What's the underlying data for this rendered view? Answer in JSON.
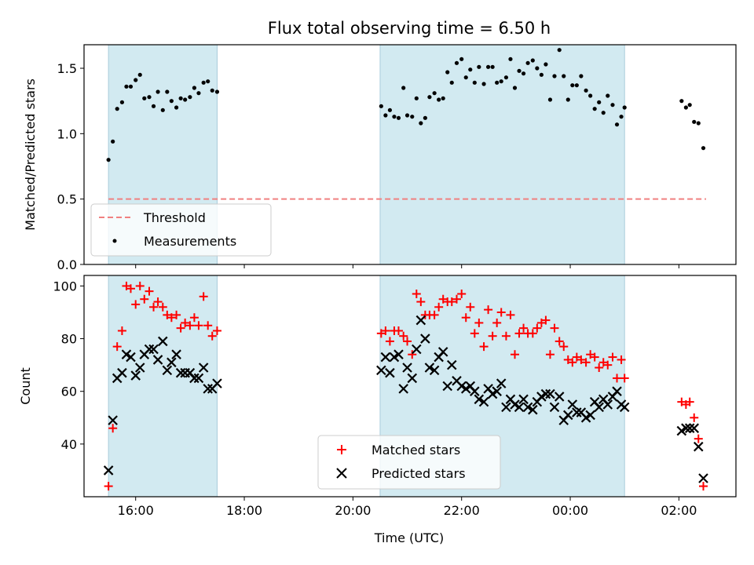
{
  "chart_data": {
    "title": "Flux total observing time = 6.50 h",
    "xlabel": "Time (UTC)",
    "x_unit": "hours since 00:00 of first day",
    "xlim": [
      15.05,
      27.05
    ],
    "xticks": [
      {
        "value": 16,
        "label": "16:00"
      },
      {
        "value": 18,
        "label": "18:00"
      },
      {
        "value": 20,
        "label": "20:00"
      },
      {
        "value": 22,
        "label": "22:00"
      },
      {
        "value": 24,
        "label": "00:00"
      },
      {
        "value": 26,
        "label": "02:00"
      }
    ],
    "shaded_intervals": [
      [
        15.5,
        17.5
      ],
      [
        20.5,
        25.0
      ]
    ],
    "panels": [
      {
        "type": "scatter",
        "ylabel": "Matched/Predicted stars",
        "ylim": [
          0.0,
          1.68
        ],
        "yticks": [
          {
            "value": 0.0,
            "label": "0.0"
          },
          {
            "value": 0.5,
            "label": "0.5"
          },
          {
            "value": 1.0,
            "label": "1.0"
          },
          {
            "value": 1.5,
            "label": "1.5"
          }
        ],
        "threshold": {
          "name": "Threshold",
          "value": 0.5,
          "x_range": [
            15.5,
            26.5
          ],
          "color": "#f08080"
        },
        "legend_location": "lower-left",
        "series": [
          {
            "name": "Measurements",
            "marker": "dot",
            "color": "#000000",
            "x": [
              15.5,
              15.58,
              15.66,
              15.75,
              15.83,
              15.91,
              16.0,
              16.08,
              16.16,
              16.25,
              16.33,
              16.41,
              16.5,
              16.58,
              16.66,
              16.75,
              16.83,
              16.91,
              17.0,
              17.08,
              17.16,
              17.25,
              17.33,
              17.41,
              17.5,
              20.52,
              20.6,
              20.68,
              20.76,
              20.84,
              20.93,
              21.0,
              21.09,
              21.17,
              21.25,
              21.33,
              21.41,
              21.5,
              21.58,
              21.66,
              21.74,
              21.82,
              21.91,
              22.0,
              22.08,
              22.16,
              22.24,
              22.32,
              22.41,
              22.49,
              22.57,
              22.65,
              22.73,
              22.82,
              22.9,
              22.98,
              23.06,
              23.14,
              23.22,
              23.31,
              23.39,
              23.47,
              23.55,
              23.63,
              23.71,
              23.8,
              23.88,
              23.96,
              24.04,
              24.12,
              24.2,
              24.29,
              24.37,
              24.45,
              24.53,
              24.61,
              24.69,
              24.78,
              24.86,
              24.94,
              25.0,
              26.05,
              26.13,
              26.2,
              26.28,
              26.36,
              26.45
            ],
            "y": [
              0.8,
              0.94,
              1.19,
              1.24,
              1.36,
              1.36,
              1.41,
              1.45,
              1.27,
              1.28,
              1.21,
              1.32,
              1.18,
              1.32,
              1.25,
              1.2,
              1.27,
              1.26,
              1.28,
              1.35,
              1.31,
              1.39,
              1.4,
              1.33,
              1.32,
              1.21,
              1.14,
              1.18,
              1.13,
              1.12,
              1.35,
              1.14,
              1.13,
              1.27,
              1.08,
              1.12,
              1.28,
              1.31,
              1.26,
              1.27,
              1.47,
              1.39,
              1.54,
              1.57,
              1.43,
              1.49,
              1.39,
              1.51,
              1.38,
              1.51,
              1.51,
              1.39,
              1.4,
              1.43,
              1.57,
              1.35,
              1.48,
              1.46,
              1.54,
              1.56,
              1.5,
              1.45,
              1.53,
              1.26,
              1.44,
              1.64,
              1.44,
              1.26,
              1.37,
              1.37,
              1.44,
              1.33,
              1.29,
              1.19,
              1.24,
              1.16,
              1.29,
              1.22,
              1.07,
              1.13,
              1.2,
              1.25,
              1.2,
              1.22,
              1.09,
              1.08,
              0.89
            ]
          }
        ]
      },
      {
        "type": "scatter",
        "ylabel": "Count",
        "ylim": [
          20,
          104
        ],
        "yticks": [
          {
            "value": 40,
            "label": "40"
          },
          {
            "value": 60,
            "label": "60"
          },
          {
            "value": 80,
            "label": "80"
          },
          {
            "value": 100,
            "label": "100"
          }
        ],
        "legend_location": "lower-center",
        "series": [
          {
            "name": "Matched stars",
            "marker": "plus",
            "color": "#ff0000",
            "x": [
              15.5,
              15.58,
              15.66,
              15.75,
              15.83,
              15.91,
              16.0,
              16.08,
              16.16,
              16.25,
              16.33,
              16.41,
              16.5,
              16.58,
              16.66,
              16.75,
              16.83,
              16.91,
              17.0,
              17.08,
              17.16,
              17.25,
              17.33,
              17.41,
              17.5,
              20.52,
              20.6,
              20.68,
              20.76,
              20.84,
              20.93,
              21.0,
              21.09,
              21.17,
              21.25,
              21.33,
              21.41,
              21.5,
              21.58,
              21.66,
              21.74,
              21.82,
              21.91,
              22.0,
              22.08,
              22.16,
              22.24,
              22.32,
              22.41,
              22.49,
              22.57,
              22.65,
              22.73,
              22.82,
              22.9,
              22.98,
              23.06,
              23.14,
              23.22,
              23.31,
              23.39,
              23.47,
              23.55,
              23.63,
              23.71,
              23.8,
              23.88,
              23.96,
              24.04,
              24.12,
              24.2,
              24.29,
              24.37,
              24.45,
              24.53,
              24.61,
              24.69,
              24.78,
              24.86,
              24.94,
              25.0,
              26.05,
              26.13,
              26.2,
              26.28,
              26.36,
              26.45
            ],
            "y": [
              24,
              46,
              77,
              83,
              100,
              99,
              93,
              100,
              95,
              98,
              92,
              94,
              92,
              89,
              88,
              89,
              84,
              86,
              85,
              88,
              85,
              96,
              85,
              81,
              83,
              82,
              83,
              79,
              83,
              83,
              81,
              79,
              74,
              97,
              94,
              89,
              89,
              89,
              92,
              95,
              94,
              94,
              95,
              97,
              88,
              92,
              82,
              86,
              77,
              91,
              81,
              86,
              90,
              81,
              89,
              74,
              82,
              84,
              82,
              82,
              84,
              86,
              87,
              74,
              84,
              79,
              77,
              72,
              71,
              73,
              72,
              71,
              74,
              73,
              69,
              71,
              70,
              73,
              65,
              72,
              65,
              56,
              55,
              56,
              50,
              42,
              24
            ]
          },
          {
            "name": "Predicted stars",
            "marker": "x",
            "color": "#000000",
            "x": [
              15.5,
              15.58,
              15.66,
              15.75,
              15.83,
              15.91,
              16.0,
              16.08,
              16.16,
              16.25,
              16.33,
              16.41,
              16.5,
              16.58,
              16.66,
              16.75,
              16.83,
              16.91,
              17.0,
              17.08,
              17.16,
              17.25,
              17.33,
              17.41,
              17.5,
              20.52,
              20.6,
              20.68,
              20.76,
              20.84,
              20.93,
              21.0,
              21.09,
              21.17,
              21.25,
              21.33,
              21.41,
              21.5,
              21.58,
              21.66,
              21.74,
              21.82,
              21.91,
              22.0,
              22.08,
              22.16,
              22.24,
              22.32,
              22.41,
              22.49,
              22.57,
              22.65,
              22.73,
              22.82,
              22.9,
              22.98,
              23.06,
              23.14,
              23.22,
              23.31,
              23.39,
              23.47,
              23.55,
              23.63,
              23.71,
              23.8,
              23.88,
              23.96,
              24.04,
              24.12,
              24.2,
              24.29,
              24.37,
              24.45,
              24.53,
              24.61,
              24.69,
              24.78,
              24.86,
              24.94,
              25.0,
              26.05,
              26.13,
              26.2,
              26.28,
              26.36,
              26.45
            ],
            "y": [
              30,
              49,
              65,
              67,
              74,
              73,
              66,
              69,
              74,
              76,
              76,
              72,
              79,
              68,
              71,
              74,
              67,
              67,
              67,
              65,
              65,
              69,
              61,
              61,
              63,
              68,
              73,
              67,
              73,
              74,
              61,
              69,
              65,
              76,
              87,
              80,
              69,
              68,
              73,
              75,
              62,
              70,
              64,
              62,
              61,
              62,
              60,
              57,
              56,
              61,
              59,
              60,
              63,
              54,
              57,
              55,
              54,
              57,
              54,
              53,
              56,
              58,
              59,
              59,
              54,
              58,
              49,
              51,
              55,
              52,
              52,
              50,
              51,
              56,
              54,
              57,
              55,
              58,
              60,
              55,
              54,
              45,
              46,
              46,
              46,
              39,
              27
            ]
          }
        ]
      }
    ]
  }
}
